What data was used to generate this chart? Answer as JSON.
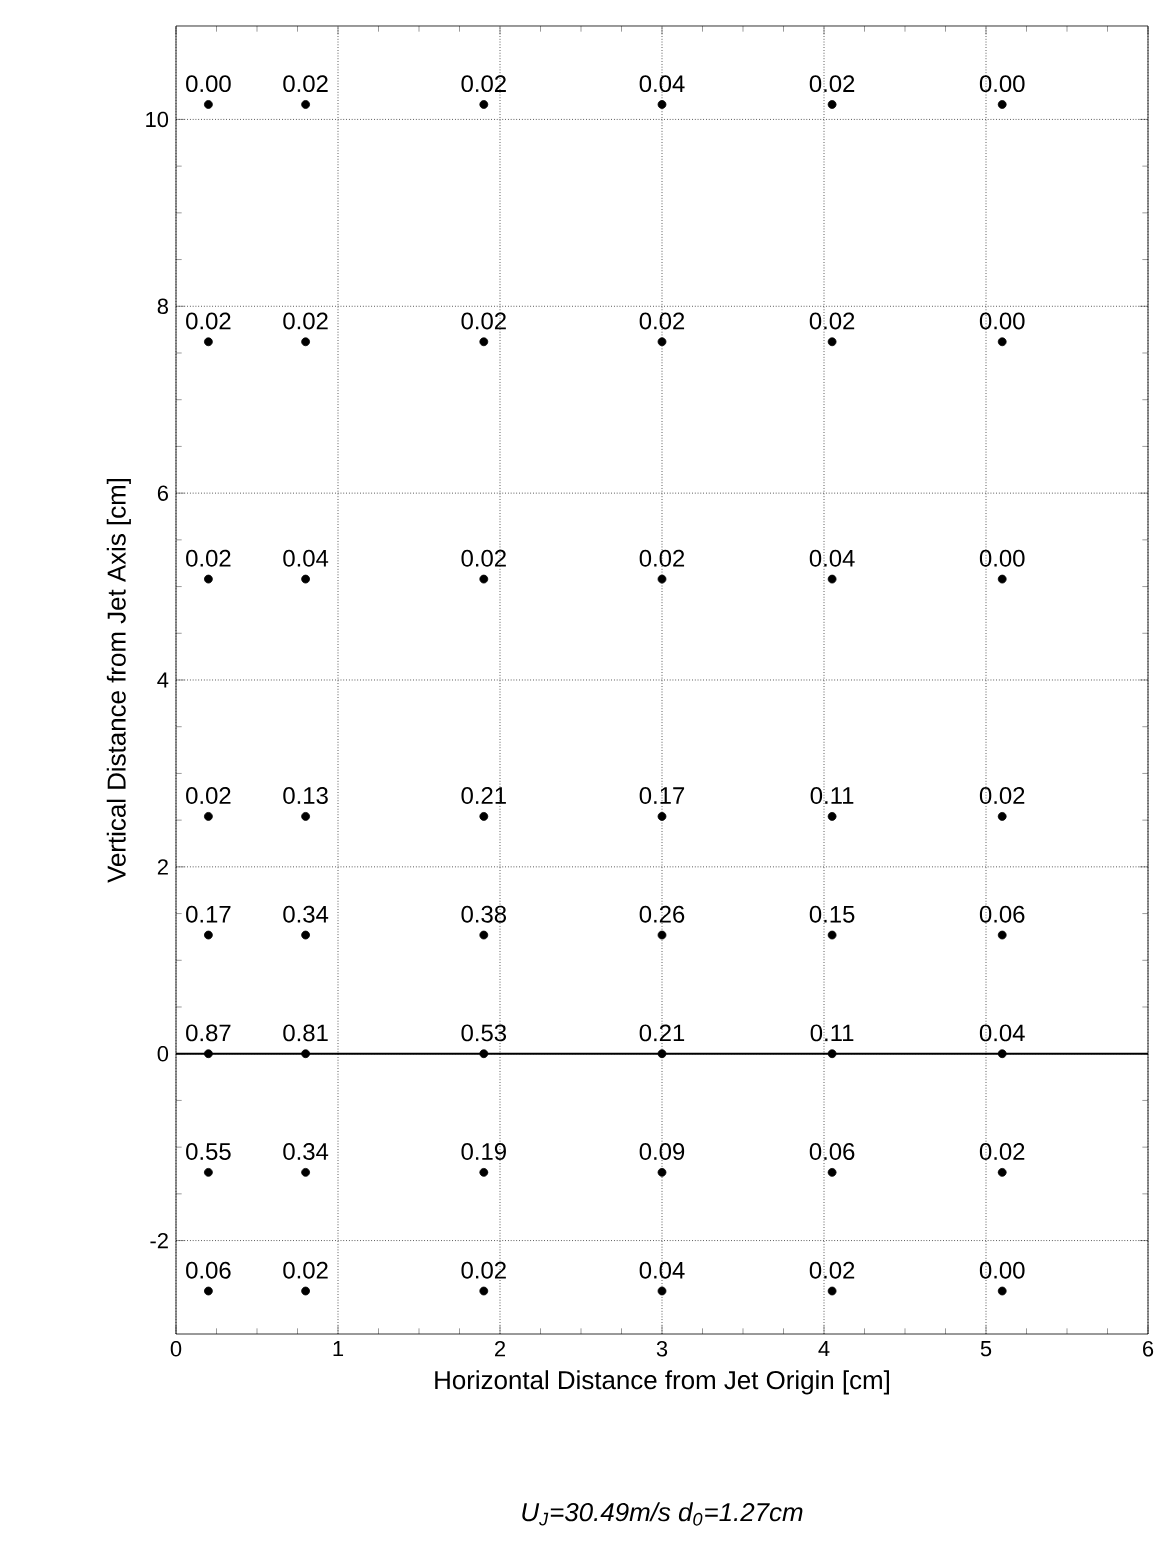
{
  "chart_data": {
    "type": "scatter",
    "xlabel": "Horizontal Distance from Jet Origin [cm]",
    "ylabel": "Vertical Distance from Jet Axis [cm]",
    "annotations": [
      "*U$_{J}$=30.49m/s  d$_{0}$=1.27cm*",
      {
        "text": "0.00",
        "x": 0.2,
        "y": 10.16
      },
      {
        "text": "0.02",
        "x": 0.8,
        "y": 10.16
      },
      {
        "text": "0.02",
        "x": 1.9,
        "y": 10.16
      },
      {
        "text": "0.04",
        "x": 3.0,
        "y": 10.16
      },
      {
        "text": "0.02",
        "x": 4.05,
        "y": 10.16
      },
      {
        "text": "0.00",
        "x": 5.1,
        "y": 10.16
      },
      {
        "text": "0.02",
        "x": 0.2,
        "y": 7.62
      },
      {
        "text": "0.02",
        "x": 0.8,
        "y": 7.62
      },
      {
        "text": "0.02",
        "x": 1.9,
        "y": 7.62
      },
      {
        "text": "0.02",
        "x": 3.0,
        "y": 7.62
      },
      {
        "text": "0.02",
        "x": 4.05,
        "y": 7.62
      },
      {
        "text": "0.00",
        "x": 5.1,
        "y": 7.62
      },
      {
        "text": "0.02",
        "x": 0.2,
        "y": 5.08
      },
      {
        "text": "0.04",
        "x": 0.8,
        "y": 5.08
      },
      {
        "text": "0.02",
        "x": 1.9,
        "y": 5.08
      },
      {
        "text": "0.02",
        "x": 3.0,
        "y": 5.08
      },
      {
        "text": "0.04",
        "x": 4.05,
        "y": 5.08
      },
      {
        "text": "0.00",
        "x": 5.1,
        "y": 5.08
      },
      {
        "text": "0.02",
        "x": 0.2,
        "y": 2.54
      },
      {
        "text": "0.13",
        "x": 0.8,
        "y": 2.54
      },
      {
        "text": "0.21",
        "x": 1.9,
        "y": 2.54
      },
      {
        "text": "0.17",
        "x": 3.0,
        "y": 2.54
      },
      {
        "text": "0.11",
        "x": 4.05,
        "y": 2.54
      },
      {
        "text": "0.02",
        "x": 5.1,
        "y": 2.54
      },
      {
        "text": "0.17",
        "x": 0.2,
        "y": 1.27
      },
      {
        "text": "0.34",
        "x": 0.8,
        "y": 1.27
      },
      {
        "text": "0.38",
        "x": 1.9,
        "y": 1.27
      },
      {
        "text": "0.26",
        "x": 3.0,
        "y": 1.27
      },
      {
        "text": "0.15",
        "x": 4.05,
        "y": 1.27
      },
      {
        "text": "0.06",
        "x": 5.1,
        "y": 1.27
      },
      {
        "text": "0.87",
        "x": 0.2,
        "y": 0
      },
      {
        "text": "0.81",
        "x": 0.8,
        "y": 0
      },
      {
        "text": "0.53",
        "x": 1.9,
        "y": 0
      },
      {
        "text": "0.21",
        "x": 3.0,
        "y": 0
      },
      {
        "text": "0.11",
        "x": 4.05,
        "y": 0
      },
      {
        "text": "0.04",
        "x": 5.1,
        "y": 0
      },
      {
        "text": "0.55",
        "x": 0.2,
        "y": -1.27
      },
      {
        "text": "0.34",
        "x": 0.8,
        "y": -1.27
      },
      {
        "text": "0.19",
        "x": 1.9,
        "y": -1.27
      },
      {
        "text": "0.09",
        "x": 3.0,
        "y": -1.27
      },
      {
        "text": "0.06",
        "x": 4.05,
        "y": -1.27
      },
      {
        "text": "0.02",
        "x": 5.1,
        "y": -1.27
      },
      {
        "text": "0.06",
        "x": 0.2,
        "y": -2.54
      },
      {
        "text": "0.02",
        "x": 0.8,
        "y": -2.54
      },
      {
        "text": "0.02",
        "x": 1.9,
        "y": -2.54
      },
      {
        "text": "0.04",
        "x": 3.0,
        "y": -2.54
      },
      {
        "text": "0.02",
        "x": 4.05,
        "y": -2.54
      },
      {
        "text": "0.00",
        "x": 5.1,
        "y": -2.54
      }
    ],
    "xlim": [
      0,
      6
    ],
    "xticks": [
      0,
      1,
      2,
      3,
      4,
      5,
      6
    ],
    "ylim": [
      -3,
      11
    ],
    "yticks": [
      -2,
      0,
      2,
      4,
      6,
      8,
      10
    ],
    "grid": true,
    "marker": "circle",
    "ref_lines": [
      {
        "axis": "y",
        "value": 0,
        "color": "#000000"
      }
    ],
    "series": [
      {
        "color": "#000000",
        "x": [
          0.2,
          0.8,
          1.9,
          3.0,
          4.05,
          5.1,
          0.2,
          0.8,
          1.9,
          3.0,
          4.05,
          5.1,
          0.2,
          0.8,
          1.9,
          3.0,
          4.05,
          5.1,
          0.2,
          0.8,
          1.9,
          3.0,
          4.05,
          5.1,
          0.2,
          0.8,
          1.9,
          3.0,
          4.05,
          5.1,
          0.2,
          0.8,
          1.9,
          3.0,
          4.05,
          5.1,
          0.2,
          0.8,
          1.9,
          3.0,
          4.05,
          5.1,
          0.2,
          0.8,
          1.9,
          3.0,
          4.05,
          5.1
        ],
        "values": [
          10.16,
          10.16,
          10.16,
          10.16,
          10.16,
          10.16,
          7.62,
          7.62,
          7.62,
          7.62,
          7.62,
          7.62,
          5.08,
          5.08,
          5.08,
          5.08,
          5.08,
          5.08,
          2.54,
          2.54,
          2.54,
          2.54,
          2.54,
          2.54,
          1.27,
          1.27,
          1.27,
          1.27,
          1.27,
          1.27,
          0,
          0,
          0,
          0,
          0,
          0,
          -1.27,
          -1.27,
          -1.27,
          -1.27,
          -1.27,
          -1.27,
          -2.54,
          -2.54,
          -2.54,
          -2.54,
          -2.54,
          -2.54
        ]
      }
    ]
  }
}
